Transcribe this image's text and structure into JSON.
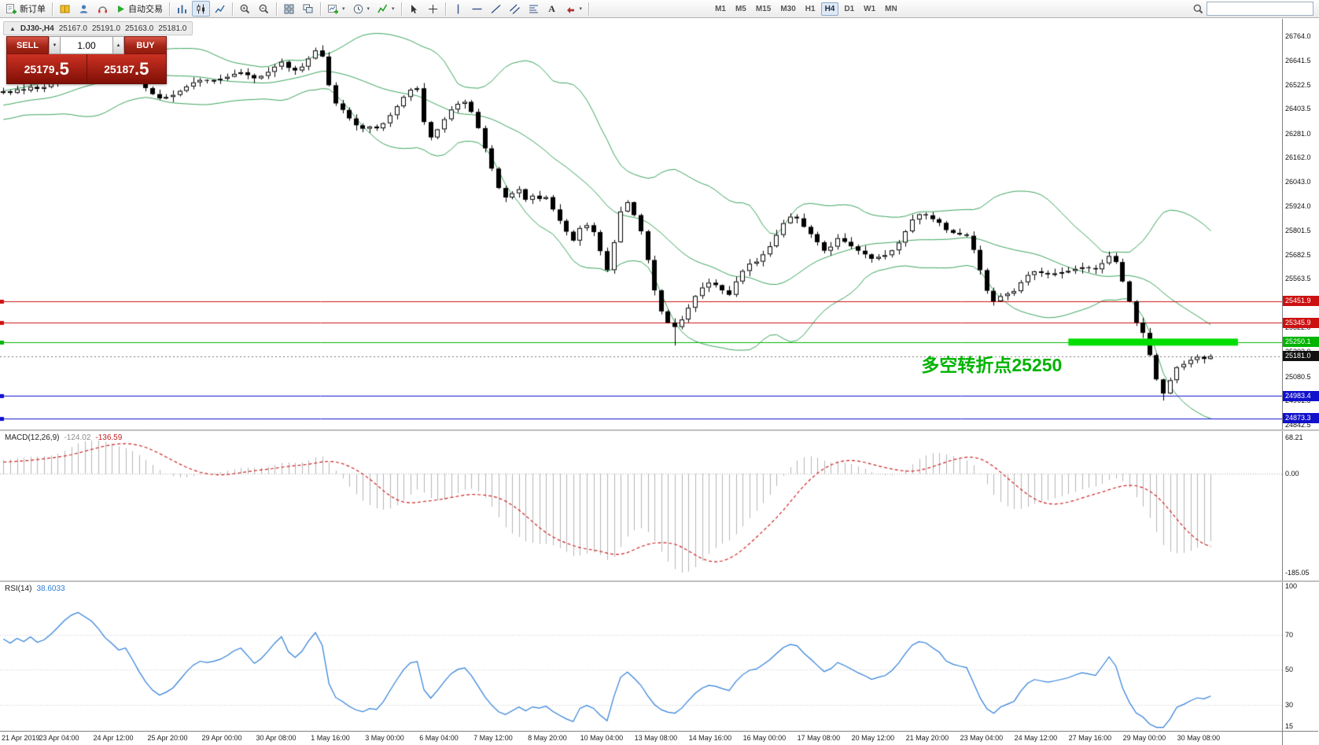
{
  "toolbar": {
    "new_order": "新订单",
    "autotrading": "自动交易",
    "timeframes": [
      "M1",
      "M5",
      "M15",
      "M30",
      "H1",
      "H4",
      "D1",
      "W1",
      "MN"
    ],
    "active_timeframe": "H4",
    "caret": "▾",
    "text_tool_glyph": "A",
    "search_placeholder": "",
    "icon_names": [
      "new-order-icon",
      "book-icon",
      "profile-icon",
      "headset-icon",
      "play-icon",
      "bar-chart-icon",
      "candlestick-icon",
      "line-chart-icon",
      "zoom-in-icon",
      "zoom-out-icon",
      "tile-windows-icon",
      "cascade-windows-icon",
      "new-chart-icon",
      "period-clock-icon",
      "indicators-icon",
      "cursor-icon",
      "crosshair-icon",
      "vertical-line-icon",
      "horizontal-line-icon",
      "trendline-icon",
      "channel-icon",
      "fibonacci-icon",
      "text-tool-icon",
      "arrows-tool-icon",
      "search-icon"
    ]
  },
  "chart_info": {
    "collapse_glyph": "▲",
    "symbol_period": "DJ30-,H4",
    "open": "25167.0",
    "high": "25191.0",
    "low": "25163.0",
    "close": "25181.0"
  },
  "one_click": {
    "sell_label": "SELL",
    "buy_label": "BUY",
    "volume": "1.00",
    "down_glyph": "▼",
    "up_glyph": "▲",
    "sell_price_main": "25179",
    "sell_price_big": ".5",
    "buy_price_main": "25187",
    "buy_price_big": ".5"
  },
  "annotation": {
    "text": "多空转折点25250"
  },
  "indicators": {
    "macd_label": "MACD(12,26,9)",
    "macd_value1": "-124.02",
    "macd_value2": "-136.59",
    "rsi_label": "RSI(14)",
    "rsi_value": "38.6033"
  },
  "colors": {
    "bollinger": "#3aa35c",
    "annotation": "#00b300",
    "highlight": "#00dd00",
    "candle_up": "#ffffff",
    "candle_down": "#000000",
    "current_badge": "#111111",
    "hline_red": "#cc1111",
    "hline_green": "#00b400",
    "hline_blue": "#1111cc"
  },
  "chart_data": [
    {
      "type": "candlestick",
      "symbol": "DJ30-",
      "timeframe": "H4",
      "ohlc_current": [
        25167.0,
        25191.0,
        25163.0,
        25181.0
      ],
      "closes": [
        26490,
        26482,
        26500,
        26494,
        26512,
        26502,
        26511,
        26532,
        26562,
        26602,
        26640,
        26664,
        26656,
        26648,
        26634,
        26616,
        26604,
        26590,
        26597,
        26572,
        26540,
        26506,
        26476,
        26455,
        26462,
        26472,
        26492,
        26514,
        26534,
        26546,
        26543,
        26546,
        26552,
        26562,
        26576,
        26584,
        26570,
        26554,
        26566,
        26586,
        26612,
        26636,
        26606,
        26593,
        26612,
        26652,
        26692,
        26662,
        26520,
        26430,
        26398,
        26356,
        26322,
        26305,
        26316,
        26307,
        26332,
        26372,
        26416,
        26462,
        26498,
        26505,
        26338,
        26262,
        26302,
        26352,
        26400,
        26428,
        26438,
        26388,
        26308,
        26208,
        26108,
        26012,
        25965,
        25986,
        26006,
        25954,
        25974,
        25958,
        25967,
        25906,
        25850,
        25796,
        25752,
        25814,
        25828,
        25794,
        25700,
        25606,
        25744,
        25896,
        25942,
        25878,
        25798,
        25656,
        25506,
        25402,
        25346,
        25325,
        25362,
        25420,
        25478,
        25520,
        25544,
        25532,
        25506,
        25484,
        25550,
        25602,
        25638,
        25648,
        25684,
        25724,
        25780,
        25838,
        25870,
        25862,
        25820,
        25784,
        25744,
        25702,
        25722,
        25764,
        25746,
        25724,
        25702,
        25684,
        25662,
        25672,
        25680,
        25704,
        25742,
        25798,
        25856,
        25882,
        25877,
        25858,
        25840,
        25804,
        25790,
        25782,
        25776,
        25706,
        25606,
        25504,
        25452,
        25478,
        25490,
        25502,
        25546,
        25582,
        25600,
        25592,
        25585,
        25590,
        25596,
        25602,
        25612,
        25620,
        25616,
        25610,
        25640,
        25676,
        25646,
        25550,
        25452,
        25347,
        25296,
        25186,
        25066,
        24996,
        25062,
        25126,
        25142,
        25162,
        25178,
        25167,
        25181
      ],
      "wick": 26,
      "overrides": {
        "46": {
          "high": 26706
        },
        "99": {
          "low": 25233
        },
        "171": {
          "low": 24961
        },
        "178": {
          "high": 25191,
          "low": 25163
        }
      },
      "bollinger_period": 20,
      "bollinger_deviation": 2,
      "shift_bars": 10,
      "ylim": [
        24818,
        26848
      ],
      "yticks": [
        26764.0,
        26641.5,
        26522.5,
        26403.5,
        26281.0,
        26162.0,
        26043.0,
        25924.0,
        25801.5,
        25682.5,
        25563.5,
        25444.5,
        25322.0,
        25203.0,
        25080.5,
        24961.5,
        24842.5
      ],
      "hlines": [
        {
          "price": 25451.9,
          "color": "#cc1111"
        },
        {
          "price": 25345.9,
          "color": "#cc1111"
        },
        {
          "price": 25250.1,
          "color": "#00b400"
        },
        {
          "price": 24983.4,
          "color": "#1111cc"
        },
        {
          "price": 24873.3,
          "color": "#1111cc"
        }
      ],
      "current_price": 25181.0,
      "highlight": {
        "price": 25250.1,
        "from_bar": 157,
        "past_bars": 3,
        "thickness": 9,
        "color": "#00dd00"
      },
      "xlabels": [
        "21 Apr 2019",
        "23 Apr 04:00",
        "24 Apr 12:00",
        "25 Apr 20:00",
        "29 Apr 00:00",
        "30 Apr 08:00",
        "1 May 16:00",
        "3 May 00:00",
        "6 May 04:00",
        "7 May 12:00",
        "8 May 20:00",
        "10 May 04:00",
        "13 May 08:00",
        "14 May 16:00",
        "16 May 00:00",
        "17 May 08:00",
        "20 May 12:00",
        "21 May 20:00",
        "23 May 04:00",
        "24 May 12:00",
        "27 May 16:00",
        "29 May 00:00",
        "30 May 08:00"
      ],
      "xlabel_every": 8
    },
    {
      "type": "macd",
      "params": [
        12,
        26,
        9
      ],
      "values_display": [
        -124.02,
        -136.59
      ],
      "ylim": [
        -200,
        80
      ],
      "yticks": [
        68.21,
        0.0,
        -185.05
      ],
      "histogram_color": "#b4b4b4",
      "signal_color": "#cc2222"
    },
    {
      "type": "rsi",
      "period": 14,
      "value_display": 38.6033,
      "ylim": [
        15,
        100
      ],
      "levels": [
        70,
        50,
        30
      ],
      "yticks": [
        100,
        70,
        50,
        30,
        15
      ],
      "line_color": "#2f7ed8"
    }
  ]
}
